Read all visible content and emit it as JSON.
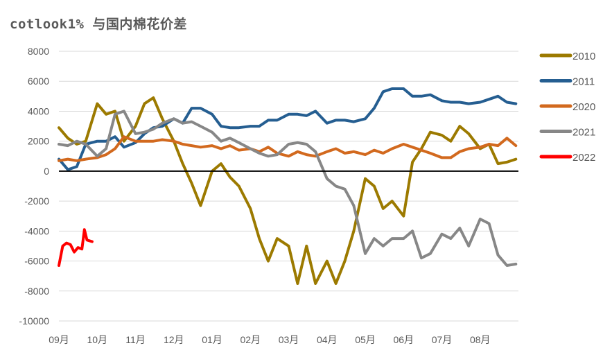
{
  "chart_data": {
    "type": "line",
    "title": "cotlook1% 与国内棉花价差",
    "xlabel": "",
    "ylabel": "",
    "x_ticks": [
      "09月",
      "10月",
      "11月",
      "12月",
      "01月",
      "02月",
      "03月",
      "04月",
      "05月",
      "06月",
      "07月",
      "08月"
    ],
    "ylim": [
      -10000,
      8000
    ],
    "y_ticks": [
      8000,
      6000,
      4000,
      2000,
      0,
      -2000,
      -4000,
      -6000,
      -8000,
      -10000
    ],
    "grid": "horizontal",
    "legend_position": "right",
    "dates": [
      "09-01",
      "09-08",
      "09-15",
      "09-22",
      "10-01",
      "10-08",
      "10-15",
      "10-22",
      "11-01",
      "11-08",
      "11-15",
      "11-22",
      "12-01",
      "12-08",
      "12-15",
      "12-22",
      "01-01",
      "01-08",
      "01-15",
      "01-22",
      "02-01",
      "02-08",
      "02-15",
      "02-22",
      "03-01",
      "03-08",
      "03-15",
      "03-22",
      "04-01",
      "04-08",
      "04-15",
      "04-22",
      "05-01",
      "05-08",
      "05-15",
      "05-22",
      "06-01",
      "06-08",
      "06-15",
      "06-22",
      "07-01",
      "07-08",
      "07-15",
      "07-22",
      "08-01",
      "08-08",
      "08-15",
      "08-22",
      "08-29"
    ],
    "series": [
      {
        "name": "2010",
        "color": "#9C7A00",
        "values": [
          2900,
          2200,
          1800,
          2000,
          4500,
          3800,
          4000,
          2000,
          3000,
          4500,
          4900,
          3500,
          2000,
          500,
          -800,
          -2300,
          0,
          500,
          -400,
          -1000,
          -2500,
          -4500,
          -6000,
          -4500,
          -5000,
          -7500,
          -5000,
          -7500,
          -6000,
          -7500,
          -6000,
          -4000,
          -500,
          -1000,
          -2500,
          -2000,
          -3000,
          600,
          1500,
          2600,
          2400,
          2000,
          3000,
          2500,
          1500,
          1800,
          500,
          600,
          800
        ]
      },
      {
        "name": "2011",
        "color": "#255E91",
        "values": [
          800,
          100,
          300,
          1800,
          2000,
          2000,
          2300,
          1600,
          1900,
          2500,
          2900,
          3000,
          3500,
          3200,
          4200,
          4200,
          3800,
          3000,
          2900,
          2900,
          3000,
          3000,
          3400,
          3400,
          3800,
          3800,
          3700,
          4000,
          3200,
          3400,
          3400,
          3300,
          3500,
          4200,
          5300,
          5500,
          5500,
          5000,
          5000,
          5100,
          4700,
          4600,
          4600,
          4500,
          4600,
          4800,
          5000,
          4600,
          4500
        ]
      },
      {
        "name": "2020",
        "color": "#D2691E",
        "values": [
          700,
          800,
          700,
          800,
          900,
          1100,
          1500,
          2300,
          2000,
          2000,
          2000,
          2100,
          2000,
          1800,
          1700,
          1600,
          1700,
          1500,
          1700,
          1400,
          1500,
          1300,
          1600,
          1200,
          1000,
          1300,
          1100,
          1000,
          1300,
          1500,
          1200,
          1300,
          1100,
          1400,
          1200,
          1500,
          1800,
          1600,
          1400,
          1200,
          900,
          900,
          1300,
          1500,
          1600,
          1800,
          1700,
          2200,
          1700
        ]
      },
      {
        "name": "2021",
        "color": "#878787",
        "values": [
          1800,
          1700,
          2000,
          1800,
          1000,
          1500,
          3800,
          4000,
          2500,
          2600,
          2800,
          3200,
          3500,
          3200,
          3300,
          3000,
          2600,
          2000,
          2200,
          1900,
          1500,
          1200,
          1000,
          1100,
          1800,
          1900,
          1800,
          1300,
          -500,
          -1000,
          -1200,
          -2300,
          -5500,
          -4500,
          -5000,
          -4500,
          -4500,
          -4000,
          -5800,
          -5500,
          -4200,
          -4500,
          -3800,
          -5000,
          -3200,
          -3500,
          -5600,
          -6300,
          -6200
        ]
      },
      {
        "name": "2022",
        "color": "#FF0000",
        "points": [
          [
            "09-01",
            -6300
          ],
          [
            "09-04",
            -5000
          ],
          [
            "09-07",
            -4800
          ],
          [
            "09-10",
            -4900
          ],
          [
            "09-13",
            -5400
          ],
          [
            "09-16",
            -5100
          ],
          [
            "09-19",
            -5200
          ],
          [
            "09-21",
            -3900
          ],
          [
            "09-23",
            -4600
          ],
          [
            "09-27",
            -4700
          ]
        ]
      }
    ]
  }
}
